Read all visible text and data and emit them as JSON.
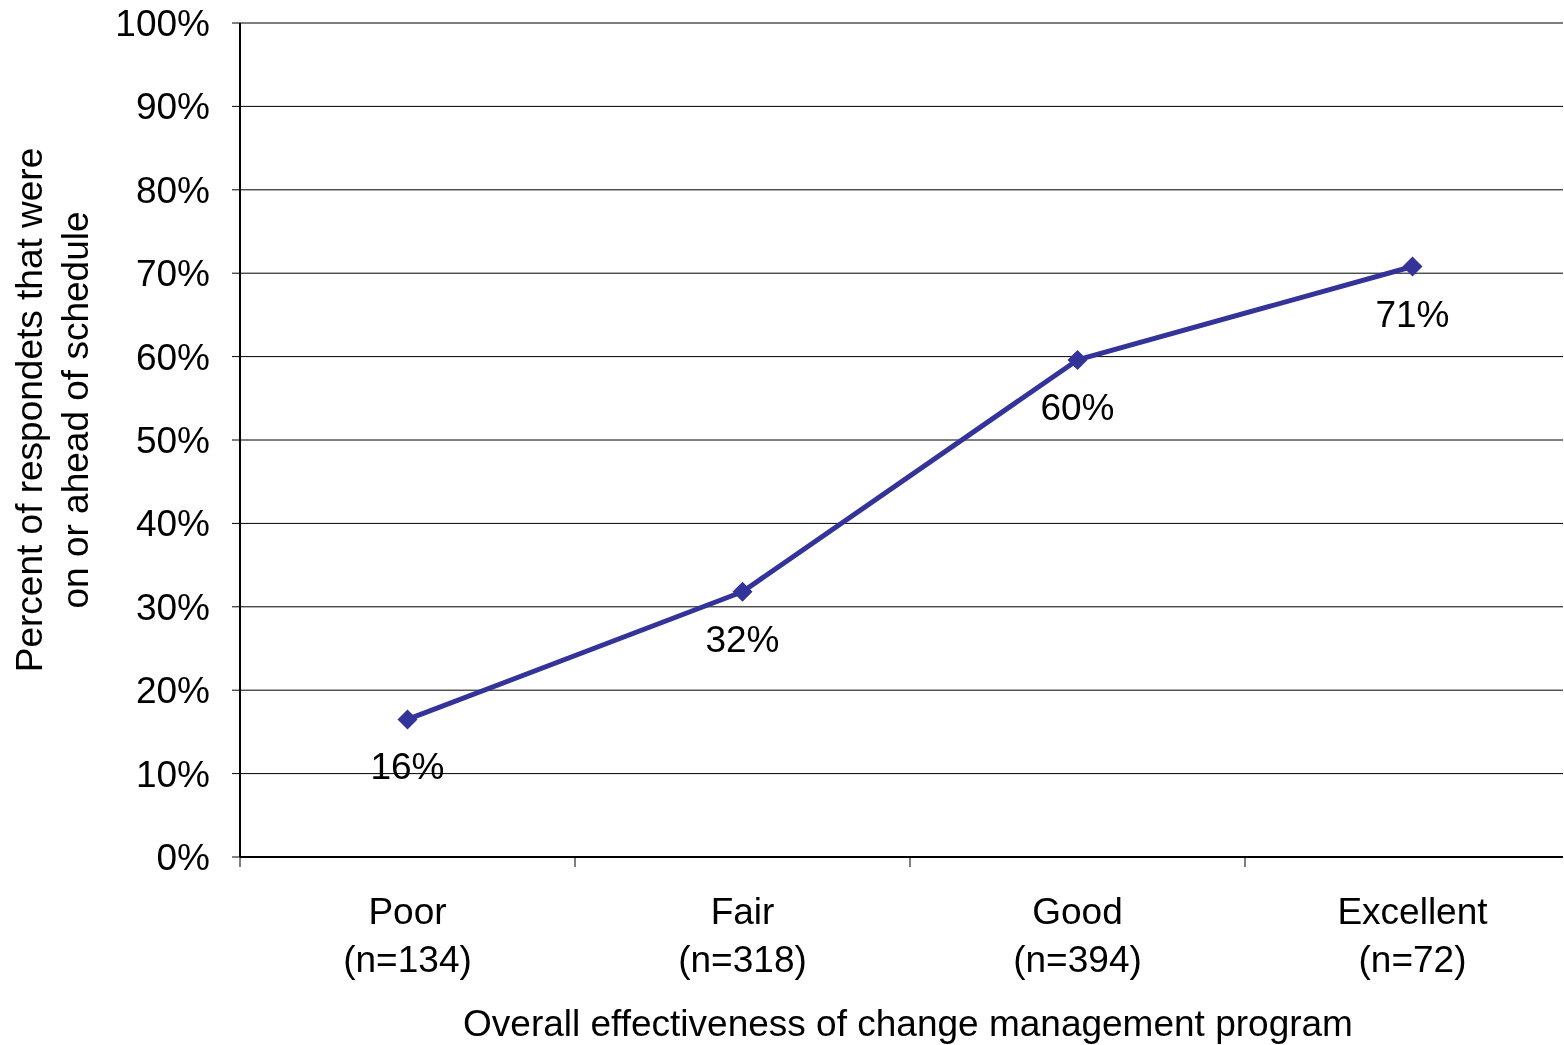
{
  "chart_data": {
    "type": "line",
    "xlabel": "Overall effectiveness of change management program",
    "ylabel": "Percent of respondets that were\non or ahead of schedule",
    "categories": [
      "Poor\n(n=134)",
      "Fair\n(n=318)",
      "Good\n(n=394)",
      "Excellent\n(n=72)"
    ],
    "series": [
      {
        "color": "#333399",
        "values": [
          16.5,
          31.8,
          59.6,
          70.8
        ],
        "value_labels": [
          "16%",
          "32%",
          "60%",
          "71%"
        ]
      }
    ],
    "ylim": [
      0,
      100
    ],
    "yticks": [
      {
        "value": 0,
        "label": "0%"
      },
      {
        "value": 10,
        "label": "10%"
      },
      {
        "value": 20,
        "label": "20%"
      },
      {
        "value": 30,
        "label": "30%"
      },
      {
        "value": 40,
        "label": "40%"
      },
      {
        "value": 50,
        "label": "50%"
      },
      {
        "value": 60,
        "label": "60%"
      },
      {
        "value": 70,
        "label": "70%"
      },
      {
        "value": 80,
        "label": "80%"
      },
      {
        "value": 90,
        "label": "90%"
      },
      {
        "value": 100,
        "label": "100%"
      }
    ],
    "grid": "y",
    "marker": "diamond",
    "line_style": "solid"
  }
}
